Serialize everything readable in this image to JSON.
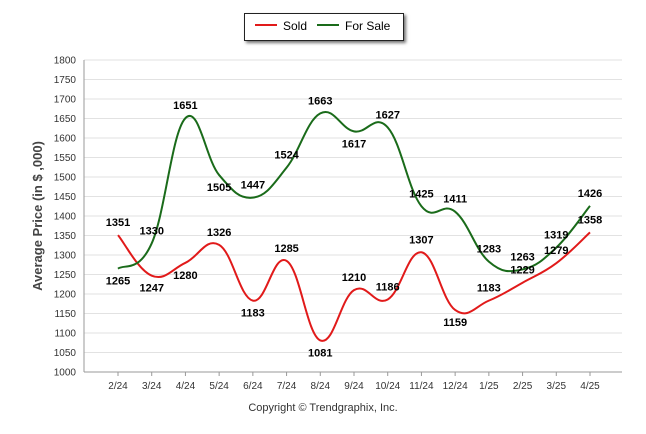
{
  "chart_data": {
    "type": "line",
    "title": "",
    "xlabel": "",
    "ylabel": "Average Price (in $ ,000)",
    "categories": [
      "2/24",
      "3/24",
      "4/24",
      "5/24",
      "6/24",
      "7/24",
      "8/24",
      "9/24",
      "10/24",
      "11/24",
      "12/24",
      "1/25",
      "2/25",
      "3/25",
      "4/25"
    ],
    "series": [
      {
        "name": "Sold",
        "color": "#e11a1a",
        "values": [
          1351,
          1247,
          1280,
          1326,
          1183,
          1285,
          1081,
          1210,
          1186,
          1307,
          1159,
          1183,
          1229,
          1279,
          1358
        ]
      },
      {
        "name": "For Sale",
        "color": "#1a6b1a",
        "values": [
          1265,
          1330,
          1651,
          1505,
          1447,
          1524,
          1663,
          1617,
          1627,
          1425,
          1411,
          1283,
          1263,
          1319,
          1426
        ]
      }
    ],
    "ylim": [
      1000,
      1800
    ],
    "yticks": [
      1000,
      1050,
      1100,
      1150,
      1200,
      1250,
      1300,
      1350,
      1400,
      1450,
      1500,
      1550,
      1600,
      1650,
      1700,
      1750,
      1800
    ],
    "grid": true,
    "legend_position": "top-center"
  },
  "copyright": "Copyright © Trendgraphix, Inc."
}
